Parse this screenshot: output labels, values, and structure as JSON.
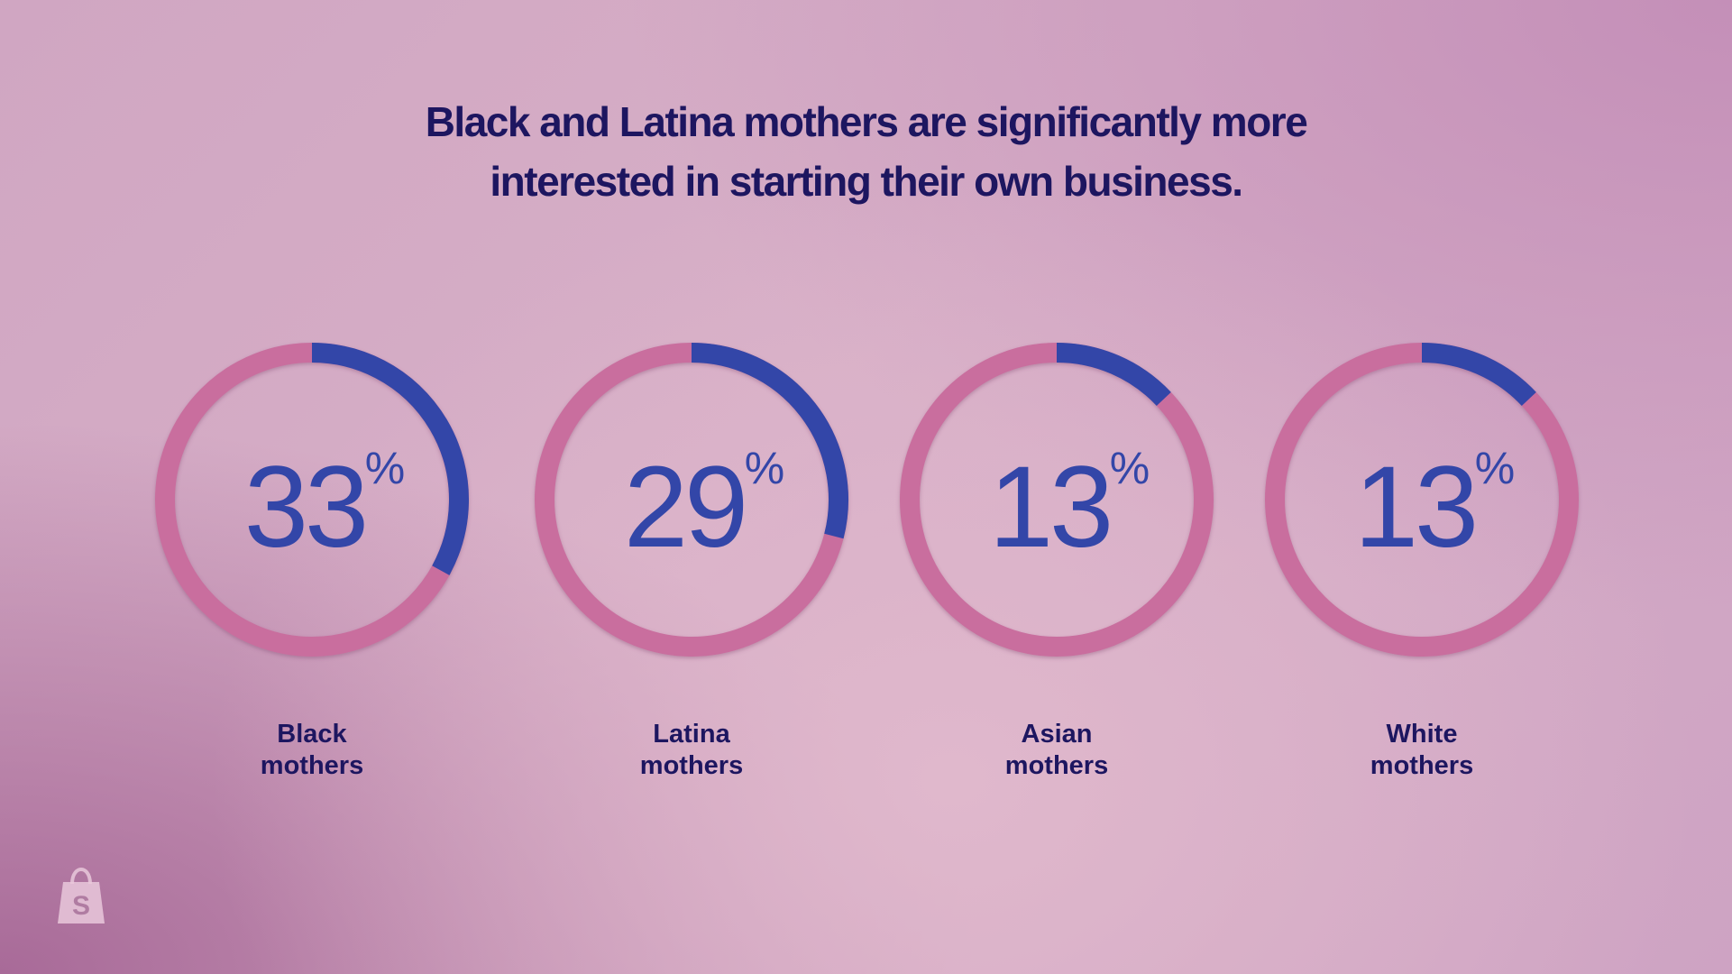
{
  "title": {
    "line1": "Black and Latina mothers are significantly more",
    "line2": "interested in starting their own business."
  },
  "chart_data": {
    "type": "donut",
    "unit": "%",
    "categories": [
      "Black mothers",
      "Latina mothers",
      "Asian mothers",
      "White mothers"
    ],
    "values": [
      33,
      29,
      13,
      13
    ],
    "labels": [
      {
        "line1": "Black",
        "line2": "mothers"
      },
      {
        "line1": "Latina",
        "line2": "mothers"
      },
      {
        "line1": "Asian",
        "line2": "mothers"
      },
      {
        "line1": "White",
        "line2": "mothers"
      }
    ],
    "colors": {
      "filled": "#3346a8",
      "track": "#c96e9e",
      "value_text": "#3346a8",
      "label_text": "#1d1660"
    }
  },
  "logo": {
    "icon": "shopify-bag-icon",
    "letter": "S"
  }
}
